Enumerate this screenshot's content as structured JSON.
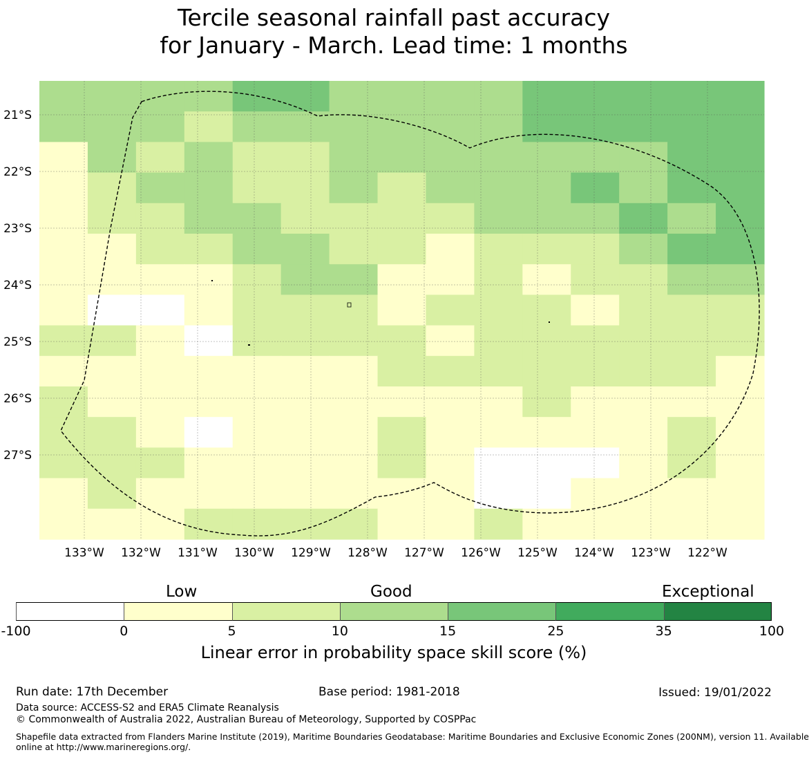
{
  "title": {
    "line1": "Tercile seasonal rainfall past accuracy",
    "line2": "for January - March. Lead time: 1 months"
  },
  "map": {
    "lon_labels": [
      "133°W",
      "132°W",
      "131°W",
      "130°W",
      "129°W",
      "128°W",
      "127°W",
      "126°W",
      "125°W",
      "124°W",
      "123°W",
      "122°W"
    ],
    "lat_labels": [
      "21°S",
      "22°S",
      "23°S",
      "24°S",
      "25°S",
      "26°S",
      "27°S"
    ],
    "grid_columns": 15,
    "grid_rows": 15,
    "grid_classes": [
      [
        2,
        2,
        2,
        2,
        3,
        3,
        2,
        2,
        2,
        2,
        3,
        3,
        3,
        3,
        3
      ],
      [
        2,
        2,
        2,
        1,
        2,
        2,
        2,
        2,
        2,
        2,
        3,
        3,
        3,
        3,
        3
      ],
      [
        0,
        2,
        1,
        2,
        1,
        1,
        2,
        2,
        2,
        2,
        2,
        2,
        2,
        3,
        3
      ],
      [
        0,
        1,
        2,
        2,
        1,
        1,
        2,
        1,
        2,
        2,
        2,
        3,
        2,
        3,
        3
      ],
      [
        0,
        1,
        1,
        2,
        2,
        1,
        1,
        1,
        1,
        2,
        2,
        2,
        3,
        2,
        3
      ],
      [
        0,
        0,
        1,
        1,
        2,
        2,
        1,
        1,
        0,
        1,
        1,
        1,
        2,
        3,
        3
      ],
      [
        0,
        0,
        0,
        0,
        1,
        2,
        2,
        0,
        0,
        1,
        0,
        1,
        1,
        2,
        2
      ],
      [
        0,
        -1,
        -1,
        0,
        1,
        1,
        1,
        0,
        1,
        1,
        1,
        0,
        1,
        1,
        1
      ],
      [
        1,
        1,
        0,
        -1,
        1,
        1,
        1,
        1,
        0,
        1,
        1,
        1,
        1,
        1,
        1
      ],
      [
        0,
        0,
        0,
        0,
        0,
        0,
        0,
        1,
        1,
        1,
        1,
        1,
        1,
        1,
        0
      ],
      [
        1,
        0,
        0,
        0,
        0,
        0,
        0,
        0,
        0,
        0,
        1,
        0,
        0,
        0,
        0
      ],
      [
        1,
        1,
        0,
        -1,
        0,
        0,
        0,
        1,
        0,
        0,
        0,
        0,
        0,
        1,
        0
      ],
      [
        1,
        1,
        1,
        0,
        0,
        0,
        0,
        1,
        0,
        -1,
        -1,
        -1,
        0,
        1,
        0
      ],
      [
        0,
        1,
        0,
        0,
        0,
        0,
        0,
        0,
        0,
        -1,
        -1,
        0,
        0,
        0,
        0
      ],
      [
        0,
        0,
        0,
        1,
        1,
        1,
        1,
        0,
        0,
        1,
        0,
        0,
        0,
        0,
        0
      ]
    ]
  },
  "colorbar": {
    "classes": [
      {
        "color": "#ffffff"
      },
      {
        "color": "#ffffcc"
      },
      {
        "color": "#d9f0a3"
      },
      {
        "color": "#addd8e"
      },
      {
        "color": "#78c679"
      },
      {
        "color": "#41ab5d"
      },
      {
        "color": "#238443"
      }
    ],
    "ticks": [
      "-100",
      "0",
      "5",
      "10",
      "15",
      "25",
      "35",
      "100"
    ],
    "category_labels": {
      "low": "Low",
      "good": "Good",
      "exceptional": "Exceptional"
    },
    "title": "Linear error in probability space skill score (%)"
  },
  "footer": {
    "run_date": "Run date: 17th December",
    "base_period": "Base period: 1981-2018",
    "issued": "Issued: 19/01/2022",
    "data_source": "Data source: ACCESS-S2 and ERA5 Climate Reanalysis",
    "copyright": "© Commonwealth of Australia 2022, Australian Bureau of Meteorology, Supported by COSPPac",
    "shapefile_line1": "Shapefile data extracted from Flanders Marine Institute (2019), Maritime Boundaries Geodatabase: Maritime Boundaries and Exclusive Economic Zones (200NM), version 11. Available",
    "shapefile_line2": "online at http://www.marineregions.org/."
  }
}
